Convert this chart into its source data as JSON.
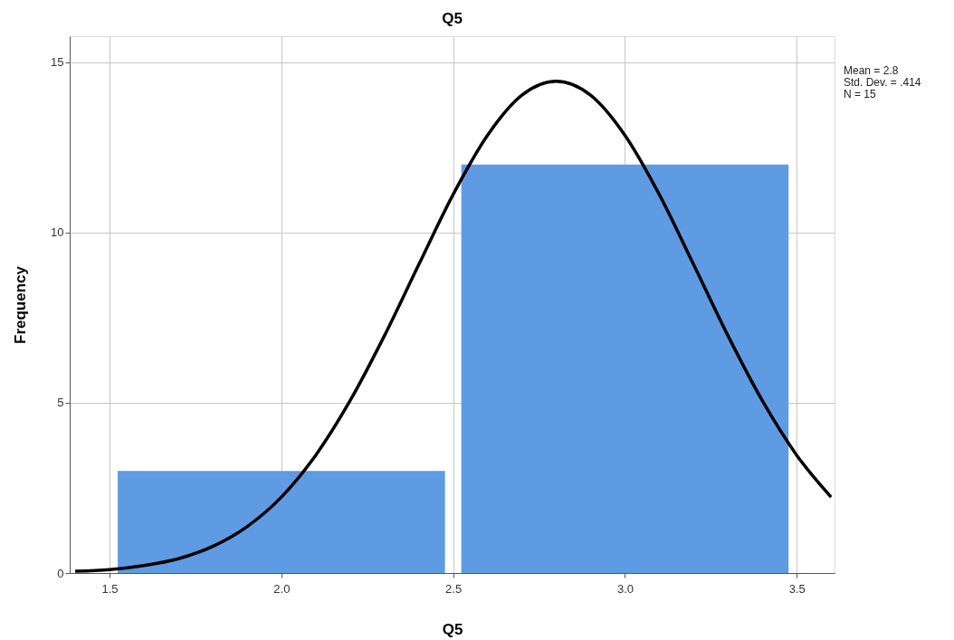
{
  "chart_data": {
    "type": "histogram",
    "title": "Q5",
    "xlabel": "Q5",
    "ylabel": "Frequency",
    "bins": [
      1.5,
      2.5,
      3.5
    ],
    "values": [
      3,
      12
    ],
    "color": "#5f9be3",
    "series": [
      {
        "type": "line",
        "color": "#000000",
        "x": [
          1.4,
          1.5,
          1.6,
          1.7,
          1.8,
          1.9,
          2.0,
          2.1,
          2.2,
          2.3,
          2.4,
          2.5,
          2.6,
          2.7,
          2.8,
          2.9,
          3.0,
          3.1,
          3.2,
          3.3,
          3.4,
          3.5,
          3.6
        ],
        "values": [
          0.05,
          0.1,
          0.22,
          0.42,
          0.78,
          1.36,
          2.23,
          3.46,
          5.06,
          6.97,
          9.06,
          11.12,
          12.86,
          14.04,
          14.45,
          14.04,
          12.86,
          11.12,
          9.06,
          6.97,
          5.06,
          3.46,
          2.23
        ]
      }
    ],
    "xlim": [
      1.384,
      3.61
    ],
    "ylim": [
      0,
      15.77
    ],
    "xticks": [
      1.5,
      {
        "value": 2,
        "label": "2.0"
      },
      2.5,
      {
        "value": 3,
        "label": "3.0"
      },
      3.5
    ],
    "yticks": [
      0,
      5,
      10,
      15
    ],
    "grid": true,
    "annotations": [
      "Mean = 2.8",
      "Std. Dev. = .414",
      "N = 15"
    ]
  }
}
